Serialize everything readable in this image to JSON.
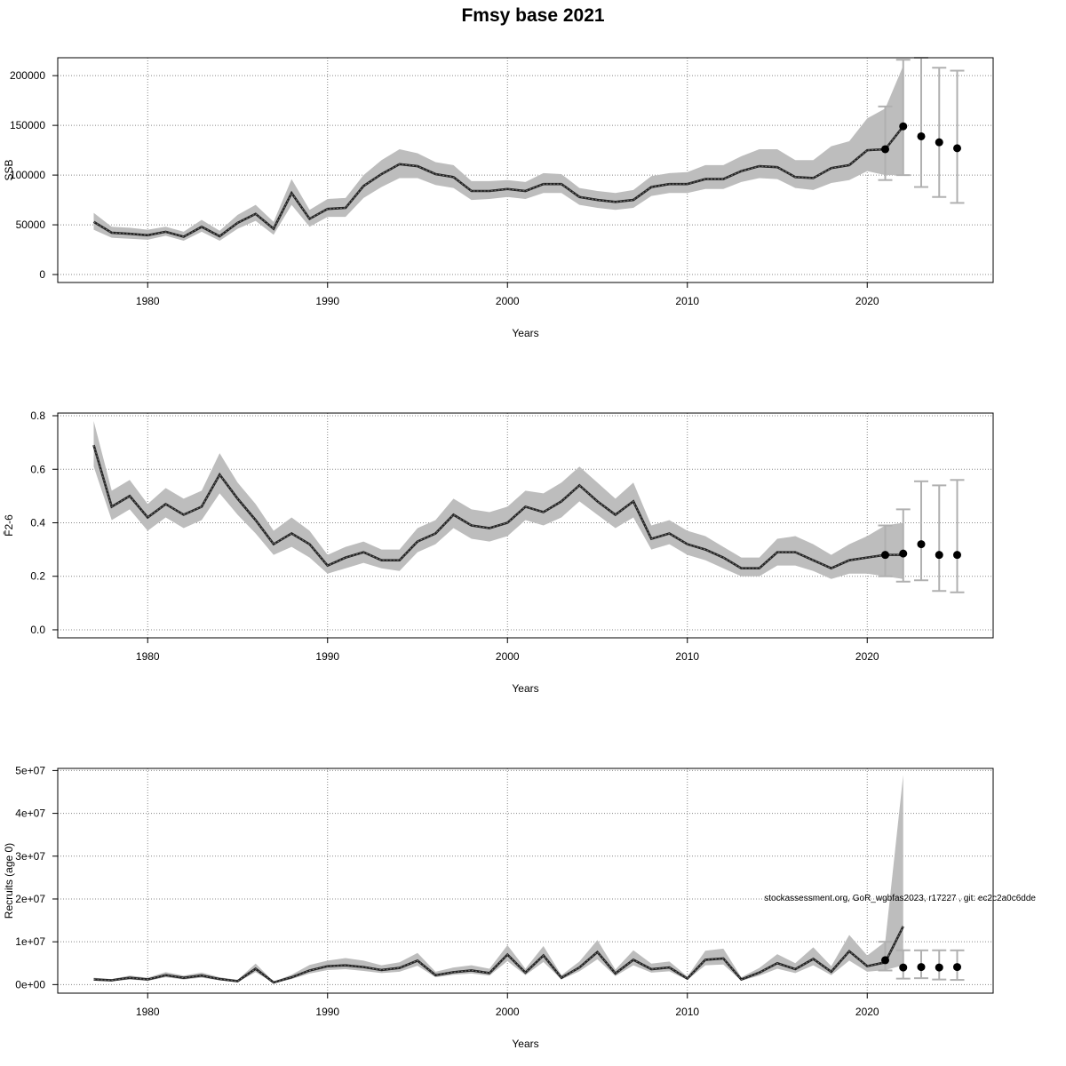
{
  "title": "Fmsy base 2021",
  "footnote": "stockassessment.org, GoR_wgbfas2023, r17227 , git: ec2c2a0c6dde",
  "chart_data": [
    {
      "id": "ssb",
      "type": "line",
      "ylabel": "SSB",
      "xlabel": "Years",
      "xlim": [
        1975,
        2027
      ],
      "ylim": [
        -8000,
        218000
      ],
      "xticks": [
        1980,
        1990,
        2000,
        2010,
        2020
      ],
      "yticks": [
        0,
        50000,
        100000,
        150000,
        200000
      ],
      "ytick_labels": [
        "0",
        "50000",
        "100000",
        "150000",
        "200000"
      ],
      "grid": true,
      "x": [
        1977,
        1978,
        1979,
        1980,
        1981,
        1982,
        1983,
        1984,
        1985,
        1986,
        1987,
        1988,
        1989,
        1990,
        1991,
        1992,
        1993,
        1994,
        1995,
        1996,
        1997,
        1998,
        1999,
        2000,
        2001,
        2002,
        2003,
        2004,
        2005,
        2006,
        2007,
        2008,
        2009,
        2010,
        2011,
        2012,
        2013,
        2014,
        2015,
        2016,
        2017,
        2018,
        2019,
        2020,
        2021,
        2022
      ],
      "estimate": [
        53000,
        42000,
        41000,
        39500,
        43000,
        38000,
        48000,
        38500,
        52000,
        61000,
        46000,
        82000,
        56000,
        66000,
        67000,
        89000,
        101000,
        111000,
        109000,
        101000,
        98000,
        84000,
        84000,
        86000,
        84000,
        91000,
        91000,
        78000,
        75000,
        73000,
        75000,
        88000,
        91000,
        91000,
        96000,
        96000,
        104000,
        109000,
        108000,
        98000,
        97000,
        107000,
        110000,
        125000,
        126000,
        149000
      ],
      "lower": [
        45000,
        37000,
        36000,
        35000,
        39000,
        34000,
        43000,
        34000,
        46000,
        54000,
        40000,
        70000,
        48000,
        58000,
        58000,
        77000,
        88000,
        97000,
        97000,
        90000,
        87000,
        75000,
        76000,
        78000,
        76000,
        82000,
        82000,
        70000,
        67000,
        65000,
        67000,
        79000,
        82000,
        82000,
        86000,
        86000,
        93000,
        97000,
        96000,
        87000,
        85000,
        92000,
        95000,
        104000,
        100000,
        100000
      ],
      "upper": [
        62000,
        48000,
        47000,
        45000,
        48000,
        43000,
        55000,
        44000,
        60000,
        70000,
        53000,
        96000,
        65000,
        76000,
        77000,
        100000,
        115000,
        126000,
        122000,
        113000,
        110000,
        94000,
        94000,
        95000,
        93000,
        102000,
        101000,
        87000,
        84000,
        82000,
        85000,
        99000,
        102000,
        103000,
        110000,
        110000,
        119000,
        126000,
        126000,
        115000,
        115000,
        129000,
        134000,
        157000,
        167000,
        210000
      ],
      "forecast": [
        {
          "year": 2021,
          "median": 126000,
          "low": 95000,
          "high": 169000
        },
        {
          "year": 2022,
          "median": 149000,
          "low": 100000,
          "high": 216000
        },
        {
          "year": 2023,
          "median": 139000,
          "low": 88000,
          "high": 218000
        },
        {
          "year": 2024,
          "median": 133000,
          "low": 78000,
          "high": 208000
        },
        {
          "year": 2025,
          "median": 127000,
          "low": 72000,
          "high": 205000
        }
      ]
    },
    {
      "id": "fbar",
      "type": "line",
      "ylabel": "F̄2-6",
      "xlabel": "Years",
      "xlim": [
        1975,
        2027
      ],
      "ylim": [
        -0.03,
        0.81
      ],
      "xticks": [
        1980,
        1990,
        2000,
        2010,
        2020
      ],
      "yticks": [
        0,
        0.2,
        0.4,
        0.6,
        0.8
      ],
      "ytick_labels": [
        "0.0",
        "0.2",
        "0.4",
        "0.6",
        "0.8"
      ],
      "grid": true,
      "x": [
        1977,
        1978,
        1979,
        1980,
        1981,
        1982,
        1983,
        1984,
        1985,
        1986,
        1987,
        1988,
        1989,
        1990,
        1991,
        1992,
        1993,
        1994,
        1995,
        1996,
        1997,
        1998,
        1999,
        2000,
        2001,
        2002,
        2003,
        2004,
        2005,
        2006,
        2007,
        2008,
        2009,
        2010,
        2011,
        2012,
        2013,
        2014,
        2015,
        2016,
        2017,
        2018,
        2019,
        2020,
        2021,
        2022
      ],
      "estimate": [
        0.69,
        0.46,
        0.5,
        0.42,
        0.47,
        0.43,
        0.46,
        0.58,
        0.49,
        0.41,
        0.32,
        0.36,
        0.32,
        0.24,
        0.27,
        0.29,
        0.26,
        0.26,
        0.33,
        0.36,
        0.43,
        0.39,
        0.38,
        0.4,
        0.46,
        0.44,
        0.48,
        0.54,
        0.48,
        0.43,
        0.48,
        0.34,
        0.36,
        0.32,
        0.3,
        0.27,
        0.23,
        0.23,
        0.29,
        0.29,
        0.26,
        0.23,
        0.26,
        0.27,
        0.28,
        0.28
      ],
      "lower": [
        0.61,
        0.41,
        0.45,
        0.37,
        0.42,
        0.38,
        0.41,
        0.51,
        0.43,
        0.36,
        0.28,
        0.31,
        0.27,
        0.21,
        0.23,
        0.25,
        0.23,
        0.22,
        0.29,
        0.32,
        0.38,
        0.34,
        0.33,
        0.35,
        0.41,
        0.39,
        0.42,
        0.48,
        0.43,
        0.38,
        0.42,
        0.3,
        0.32,
        0.28,
        0.26,
        0.23,
        0.2,
        0.2,
        0.24,
        0.24,
        0.22,
        0.19,
        0.21,
        0.21,
        0.2,
        0.19
      ],
      "upper": [
        0.78,
        0.52,
        0.56,
        0.47,
        0.53,
        0.49,
        0.52,
        0.66,
        0.55,
        0.47,
        0.37,
        0.42,
        0.37,
        0.28,
        0.31,
        0.33,
        0.3,
        0.3,
        0.38,
        0.41,
        0.49,
        0.45,
        0.44,
        0.46,
        0.52,
        0.51,
        0.55,
        0.61,
        0.55,
        0.49,
        0.55,
        0.39,
        0.41,
        0.37,
        0.35,
        0.31,
        0.27,
        0.27,
        0.34,
        0.35,
        0.32,
        0.28,
        0.32,
        0.35,
        0.39,
        0.4
      ],
      "forecast": [
        {
          "year": 2021,
          "median": 0.28,
          "low": 0.2,
          "high": 0.39
        },
        {
          "year": 2022,
          "median": 0.285,
          "low": 0.18,
          "high": 0.45
        },
        {
          "year": 2023,
          "median": 0.32,
          "low": 0.185,
          "high": 0.555
        },
        {
          "year": 2024,
          "median": 0.28,
          "low": 0.145,
          "high": 0.54
        },
        {
          "year": 2025,
          "median": 0.28,
          "low": 0.14,
          "high": 0.56
        }
      ]
    },
    {
      "id": "recruits",
      "type": "line",
      "ylabel": "Recruits (age 0)",
      "xlabel": "Years",
      "xlim": [
        1975,
        2027
      ],
      "ylim": [
        -2000000,
        50500000
      ],
      "xticks": [
        1980,
        1990,
        2000,
        2010,
        2020
      ],
      "yticks": [
        0,
        10000000,
        20000000,
        30000000,
        40000000,
        50000000
      ],
      "ytick_labels": [
        "0e+00",
        "1e+07",
        "2e+07",
        "3e+07",
        "4e+07",
        "5e+07"
      ],
      "grid": true,
      "x": [
        1977,
        1978,
        1979,
        1980,
        1981,
        1982,
        1983,
        1984,
        1985,
        1986,
        1987,
        1988,
        1989,
        1990,
        1991,
        1992,
        1993,
        1994,
        1995,
        1996,
        1997,
        1998,
        1999,
        2000,
        2001,
        2002,
        2003,
        2004,
        2005,
        2006,
        2007,
        2008,
        2009,
        2010,
        2011,
        2012,
        2013,
        2014,
        2015,
        2016,
        2017,
        2018,
        2019,
        2020,
        2021,
        2022
      ],
      "estimate": [
        1200000,
        1000000,
        1600000,
        1200000,
        2200000,
        1600000,
        2100000,
        1300000,
        800000,
        3700000,
        500000,
        1700000,
        3300000,
        4300000,
        4500000,
        4100000,
        3400000,
        3900000,
        5600000,
        2200000,
        2900000,
        3300000,
        2700000,
        7000000,
        2800000,
        6800000,
        1600000,
        4000000,
        7600000,
        2600000,
        5800000,
        3600000,
        4000000,
        1400000,
        5800000,
        6100000,
        1200000,
        2800000,
        5000000,
        3600000,
        6000000,
        3000000,
        7800000,
        4300000,
        5200000,
        13600000
      ],
      "lower": [
        900000,
        800000,
        1200000,
        900000,
        1700000,
        1200000,
        1600000,
        1000000,
        600000,
        2900000,
        400000,
        1300000,
        2600000,
        3400000,
        3600000,
        3200000,
        2700000,
        3000000,
        4400000,
        1700000,
        2300000,
        2600000,
        2100000,
        5500000,
        2200000,
        5300000,
        1200000,
        3100000,
        5900000,
        2000000,
        4500000,
        2800000,
        3100000,
        1100000,
        4500000,
        4700000,
        900000,
        2100000,
        3700000,
        2700000,
        4500000,
        2200000,
        5600000,
        3000000,
        3400000,
        4500000
      ],
      "upper": [
        1600000,
        1300000,
        2100000,
        1600000,
        2900000,
        2100000,
        2800000,
        1700000,
        1100000,
        4900000,
        700000,
        2300000,
        4600000,
        5600000,
        6200000,
        5600000,
        4500000,
        5200000,
        7400000,
        3000000,
        4000000,
        4500000,
        3700000,
        9200000,
        3700000,
        9000000,
        2200000,
        5400000,
        10400000,
        3500000,
        8000000,
        4900000,
        5400000,
        1900000,
        7900000,
        8400000,
        1700000,
        3900000,
        7100000,
        5000000,
        8700000,
        4300000,
        11600000,
        6800000,
        10000000,
        49000000
      ],
      "forecast": [
        {
          "year": 2021,
          "median": 5700000,
          "low": 3300000,
          "high": 10000000
        },
        {
          "year": 2022,
          "median": 4000000,
          "low": 1400000,
          "high": 8000000
        },
        {
          "year": 2023,
          "median": 4100000,
          "low": 1500000,
          "high": 8000000
        },
        {
          "year": 2024,
          "median": 4000000,
          "low": 1200000,
          "high": 8000000
        },
        {
          "year": 2025,
          "median": 4100000,
          "low": 1100000,
          "high": 8000000
        }
      ]
    }
  ]
}
